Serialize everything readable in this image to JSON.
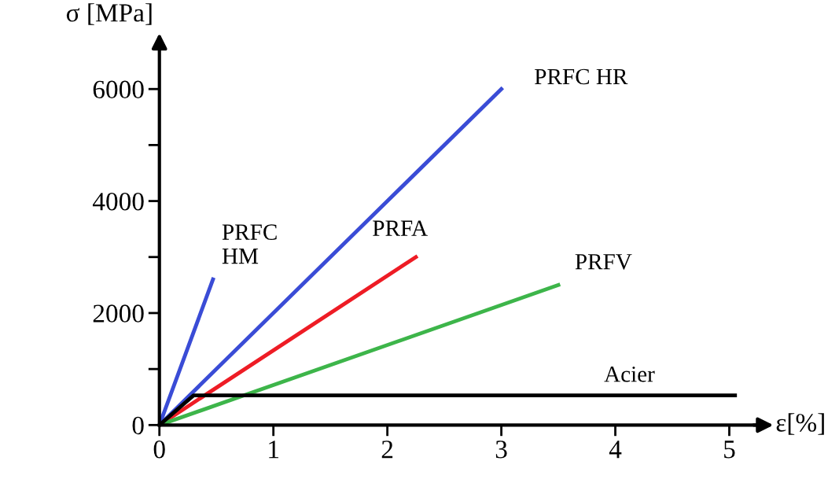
{
  "chart_data": {
    "type": "line",
    "xlabel": "ε[%]",
    "ylabel": "σ [MPa]",
    "xlim": [
      0,
      5.3
    ],
    "ylim": [
      0,
      6900
    ],
    "xticks": [
      0,
      1,
      2,
      3,
      4,
      5
    ],
    "yticks": [
      0,
      {
        "value": 1000,
        "label": null
      },
      2000,
      {
        "value": 3000,
        "label": null
      },
      4000,
      {
        "value": 5000,
        "label": null
      },
      6000
    ],
    "grid": false,
    "legend": false,
    "marker": "none",
    "line_style": "solid",
    "series": [
      {
        "name": "PRFC\nHM",
        "color": "#3a4cd6",
        "x": [
          0,
          0.47
        ],
        "values": [
          0,
          2600
        ]
      },
      {
        "name": "PRFC HR",
        "color": "#3a4cd6",
        "x": [
          0,
          3.0
        ],
        "values": [
          0,
          6000
        ]
      },
      {
        "name": "PRFA",
        "color": "#ee1c25",
        "x": [
          0,
          2.25
        ],
        "values": [
          0,
          3000
        ]
      },
      {
        "name": "PRFV",
        "color": "#3db54a",
        "x": [
          0,
          3.5
        ],
        "values": [
          0,
          2500
        ]
      },
      {
        "name": "Acier",
        "color": "#000000",
        "x": [
          0,
          0.3,
          5.05
        ],
        "values": [
          0,
          530,
          530
        ]
      }
    ]
  }
}
